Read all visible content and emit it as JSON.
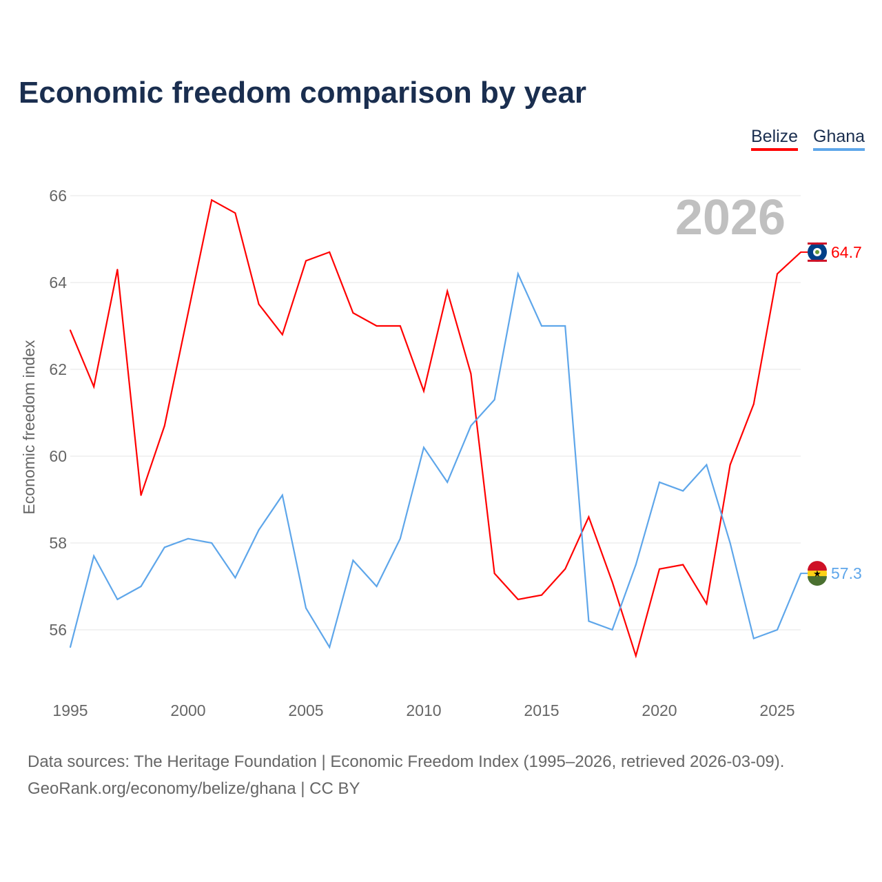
{
  "title": "Economic freedom comparison by year",
  "footer": {
    "line1": "Data sources: The Heritage Foundation | Economic Freedom Index (1995–2026, retrieved 2026-03-09).",
    "line2": "GeoRank.org/economy/belize/ghana | CC BY"
  },
  "chart_data": {
    "type": "line",
    "title": "Economic freedom comparison by year",
    "xlabel": "",
    "ylabel": "Economic freedom index",
    "year_watermark": "2026",
    "x": [
      1995,
      1996,
      1997,
      1998,
      1999,
      2000,
      2001,
      2002,
      2003,
      2004,
      2005,
      2006,
      2007,
      2008,
      2009,
      2010,
      2011,
      2012,
      2013,
      2014,
      2015,
      2016,
      2017,
      2018,
      2019,
      2020,
      2021,
      2022,
      2023,
      2024,
      2025,
      2026
    ],
    "xticks": [
      "1995",
      "2000",
      "2005",
      "2010",
      "2015",
      "2020",
      "2025"
    ],
    "yticks": [
      "56",
      "58",
      "60",
      "62",
      "64",
      "66"
    ],
    "ylim": [
      54.6,
      66.5
    ],
    "legend_position": "top-right",
    "series": [
      {
        "name": "Belize",
        "color": "#ff0000",
        "end_label": "64.7",
        "flag": "belize-flag",
        "values": [
          62.9,
          61.6,
          64.3,
          59.1,
          60.7,
          63.3,
          65.9,
          65.6,
          63.5,
          62.8,
          64.5,
          64.7,
          63.3,
          63.0,
          63.0,
          61.5,
          63.8,
          61.9,
          57.3,
          56.7,
          56.8,
          57.4,
          58.6,
          57.1,
          55.4,
          57.4,
          57.5,
          56.6,
          59.8,
          61.2,
          64.2,
          64.7
        ]
      },
      {
        "name": "Ghana",
        "color": "#5ea6ea",
        "end_label": "57.3",
        "flag": "ghana-flag",
        "values": [
          55.6,
          57.7,
          56.7,
          57.0,
          57.9,
          58.1,
          58.0,
          57.2,
          58.3,
          59.1,
          56.5,
          55.6,
          57.6,
          57.0,
          58.1,
          60.2,
          59.4,
          60.7,
          61.3,
          64.2,
          63.0,
          63.0,
          56.2,
          56.0,
          57.5,
          59.4,
          59.2,
          59.8,
          58.0,
          55.8,
          56.0,
          57.3
        ]
      }
    ]
  }
}
